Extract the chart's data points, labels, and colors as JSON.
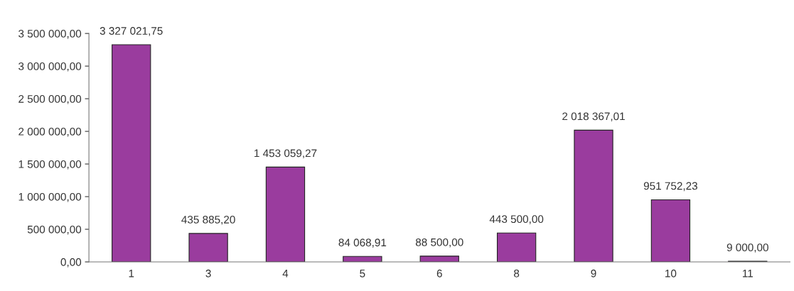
{
  "chart_data": {
    "type": "bar",
    "categories": [
      "1",
      "3",
      "4",
      "5",
      "6",
      "8",
      "9",
      "10",
      "11"
    ],
    "values": [
      3327021.75,
      435885.2,
      1453059.27,
      84068.91,
      88500.0,
      443500.0,
      2018367.01,
      951752.23,
      9000.0
    ],
    "value_labels": [
      "3 327 021,75",
      "435 885,20",
      "1 453 059,27",
      "84 068,91",
      "88 500,00",
      "443 500,00",
      "2 018 367,01",
      "951 752,23",
      "9 000,00"
    ],
    "color": "#9a3c9e",
    "ylim": [
      0,
      3500000
    ],
    "yticks": [
      {
        "value": 0,
        "label": "0,00"
      },
      {
        "value": 500000,
        "label": "500 000,00"
      },
      {
        "value": 1000000,
        "label": "1 000 000,00"
      },
      {
        "value": 1500000,
        "label": "1 500 000,00"
      },
      {
        "value": 2000000,
        "label": "2 000 000,00"
      },
      {
        "value": 2500000,
        "label": "2 500 000,00"
      },
      {
        "value": 3000000,
        "label": "3 000 000,00"
      },
      {
        "value": 3500000,
        "label": "3 500 000,00"
      }
    ],
    "grid": false,
    "legend": false
  }
}
